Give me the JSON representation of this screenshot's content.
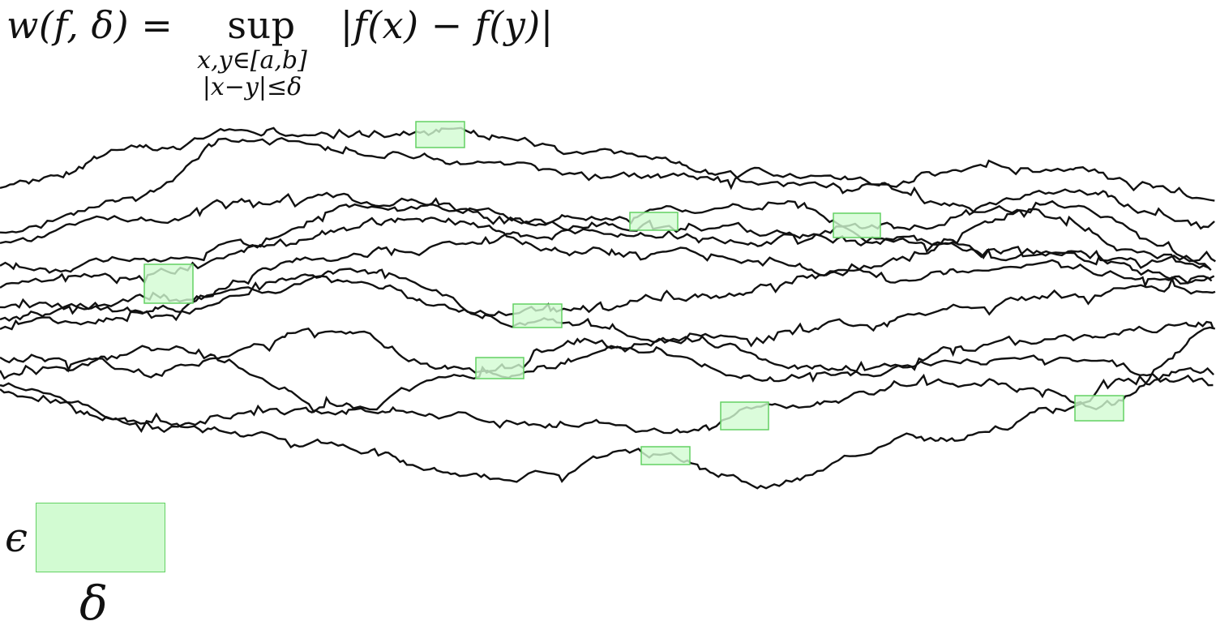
{
  "formula": {
    "lhs": "w(f, δ) =",
    "operator": "sup",
    "rhs": "|f(x) − f(y)|",
    "condition_1": "x,y∈[a,b]",
    "condition_2": "|x−y|≤δ"
  },
  "legend": {
    "vertical_label": "ϵ",
    "horizontal_label": "δ"
  },
  "colors": {
    "path_stroke": "#111111",
    "box_fill": "#d2fbd2",
    "box_stroke": "#63d163"
  }
}
